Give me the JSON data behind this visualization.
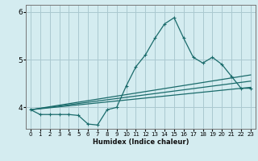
{
  "xlabel": "Humidex (Indice chaleur)",
  "bg_color": "#d4ecf0",
  "grid_color": "#aac8d0",
  "line_color": "#1a6b6b",
  "xlim": [
    -0.5,
    23.5
  ],
  "ylim": [
    3.55,
    6.15
  ],
  "yticks": [
    4,
    5,
    6
  ],
  "xticks": [
    0,
    1,
    2,
    3,
    4,
    5,
    6,
    7,
    8,
    9,
    10,
    11,
    12,
    13,
    14,
    15,
    16,
    17,
    18,
    19,
    20,
    21,
    22,
    23
  ],
  "line1_x": [
    0,
    1,
    2,
    3,
    4,
    5,
    6,
    7,
    8,
    9,
    10,
    11,
    12,
    13,
    14,
    15,
    16,
    17,
    18,
    19,
    20,
    21,
    22,
    23
  ],
  "line1_y": [
    3.95,
    3.85,
    3.85,
    3.85,
    3.85,
    3.83,
    3.65,
    3.63,
    3.95,
    4.0,
    4.45,
    4.85,
    5.1,
    5.45,
    5.75,
    5.88,
    5.45,
    5.05,
    4.93,
    5.05,
    4.9,
    4.65,
    4.4,
    4.4
  ],
  "line2_x": [
    0,
    23
  ],
  "line2_y": [
    3.95,
    4.42
  ],
  "line3_x": [
    0,
    23
  ],
  "line3_y": [
    3.95,
    4.55
  ],
  "line4_x": [
    0,
    23
  ],
  "line4_y": [
    3.95,
    4.68
  ]
}
